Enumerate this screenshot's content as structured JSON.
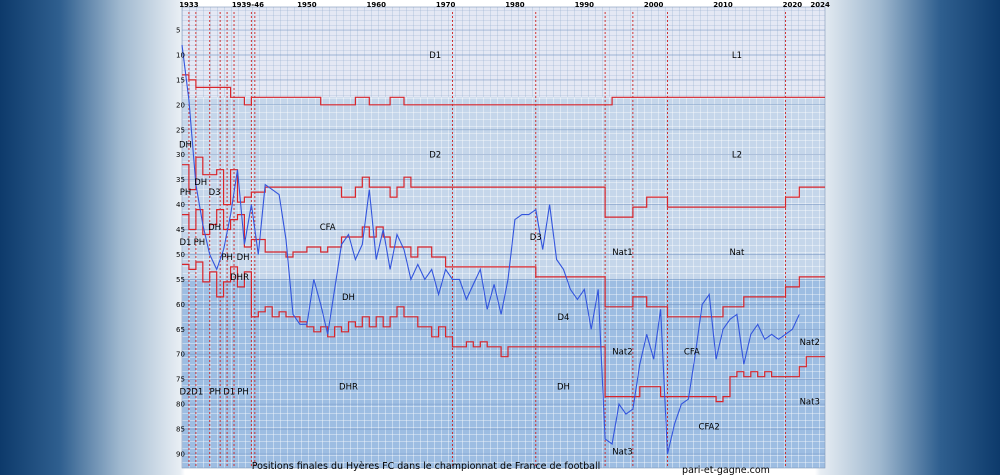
{
  "chart_data": {
    "type": "line",
    "title": "Positions finales du Hyères FC dans le championnat de France de football",
    "source": "pari-et-gagne.com",
    "year_ticks": [
      "1933",
      "1939-46",
      "1950",
      "1960",
      "1970",
      "1980",
      "1990",
      "2000",
      "2010",
      "2020",
      "2024"
    ],
    "position_ticks": [
      5,
      10,
      15,
      20,
      25,
      30,
      35,
      40,
      45,
      50,
      55,
      60,
      65,
      70,
      75,
      80,
      85,
      90
    ],
    "xlim": [
      1932,
      2024.7
    ],
    "ylim": [
      0,
      94
    ],
    "division_labels": [
      {
        "text": "D1",
        "x": 1968.5,
        "y": 10
      },
      {
        "text": "L1",
        "x": 2012,
        "y": 10
      },
      {
        "text": "D2",
        "x": 1968.5,
        "y": 30
      },
      {
        "text": "L2",
        "x": 2012,
        "y": 30
      },
      {
        "text": "DH",
        "x": 1932.5,
        "y": 28
      },
      {
        "text": "PH",
        "x": 1932.5,
        "y": 37.5
      },
      {
        "text": "DH",
        "x": 1934.7,
        "y": 35.5
      },
      {
        "text": "D3",
        "x": 1936.7,
        "y": 37.5
      },
      {
        "text": "D1",
        "x": 1932.5,
        "y": 47.5
      },
      {
        "text": "PH",
        "x": 1934.5,
        "y": 47.5
      },
      {
        "text": "DH",
        "x": 1936.7,
        "y": 44.5
      },
      {
        "text": "PH",
        "x": 1938.5,
        "y": 50.5
      },
      {
        "text": "DH",
        "x": 1940.8,
        "y": 50.5
      },
      {
        "text": "DHR",
        "x": 1940.3,
        "y": 54.5
      },
      {
        "text": "CFA",
        "x": 1953,
        "y": 44.5
      },
      {
        "text": "D3",
        "x": 1983,
        "y": 46.5
      },
      {
        "text": "Nat1",
        "x": 1995.5,
        "y": 49.5
      },
      {
        "text": "Nat",
        "x": 2012,
        "y": 49.5
      },
      {
        "text": "DH",
        "x": 1956,
        "y": 58.5
      },
      {
        "text": "D4",
        "x": 1987,
        "y": 62.5
      },
      {
        "text": "Nat2",
        "x": 1995.5,
        "y": 69.5
      },
      {
        "text": "CFA",
        "x": 2005.5,
        "y": 69.5
      },
      {
        "text": "Nat2",
        "x": 2022.5,
        "y": 67.5
      },
      {
        "text": "D2",
        "x": 1932.5,
        "y": 77.5
      },
      {
        "text": "D1",
        "x": 1934.2,
        "y": 77.5
      },
      {
        "text": "PH",
        "x": 1936.8,
        "y": 77.5
      },
      {
        "text": "D1",
        "x": 1938.8,
        "y": 77.5
      },
      {
        "text": "PH",
        "x": 1940.8,
        "y": 77.5
      },
      {
        "text": "DHR",
        "x": 1956,
        "y": 76.5
      },
      {
        "text": "DH",
        "x": 1987,
        "y": 76.5
      },
      {
        "text": "Nat3",
        "x": 2022.5,
        "y": 79.5
      },
      {
        "text": "CFA2",
        "x": 2008,
        "y": 84.5
      },
      {
        "text": "Nat3",
        "x": 1995.5,
        "y": 89.5
      }
    ],
    "boundaries": [
      [
        [
          1932,
          14
        ],
        [
          1933,
          14
        ],
        [
          1933,
          15
        ],
        [
          1934,
          15
        ],
        [
          1934,
          16.5
        ],
        [
          1939,
          16.5
        ],
        [
          1939,
          18.5
        ],
        [
          1941,
          18.5
        ],
        [
          1941,
          20
        ],
        [
          1942,
          20
        ],
        [
          1942,
          18.5
        ],
        [
          1952,
          18.5
        ],
        [
          1952,
          20
        ],
        [
          1957,
          20
        ],
        [
          1957,
          18.5
        ],
        [
          1959,
          18.5
        ],
        [
          1959,
          20
        ],
        [
          1962,
          20
        ],
        [
          1962,
          18.5
        ],
        [
          1964,
          18.5
        ],
        [
          1964,
          20
        ],
        [
          1994,
          20
        ],
        [
          1994,
          18.5
        ],
        [
          2024.7,
          18.5
        ]
      ],
      [
        [
          1932,
          32
        ],
        [
          1933,
          32
        ],
        [
          1933,
          37
        ],
        [
          1934,
          37
        ],
        [
          1934,
          30.5
        ],
        [
          1935,
          30.5
        ],
        [
          1935,
          34
        ],
        [
          1937,
          34
        ],
        [
          1937,
          33
        ],
        [
          1938,
          33
        ],
        [
          1938,
          40
        ],
        [
          1939,
          40
        ],
        [
          1939,
          33
        ],
        [
          1940,
          33
        ],
        [
          1940,
          39.5
        ],
        [
          1941,
          39.5
        ],
        [
          1941,
          38.5
        ],
        [
          1942,
          38.5
        ],
        [
          1942,
          37.5
        ],
        [
          1944,
          37.5
        ],
        [
          1944,
          36.5
        ],
        [
          1955,
          36.5
        ],
        [
          1955,
          38.5
        ],
        [
          1957,
          38.5
        ],
        [
          1957,
          36.5
        ],
        [
          1958,
          36.5
        ],
        [
          1958,
          34.5
        ],
        [
          1959,
          34.5
        ],
        [
          1959,
          36.5
        ],
        [
          1962,
          36.5
        ],
        [
          1962,
          38.5
        ],
        [
          1963,
          38.5
        ],
        [
          1963,
          36.5
        ],
        [
          1964,
          36.5
        ],
        [
          1964,
          34.5
        ],
        [
          1965,
          34.5
        ],
        [
          1965,
          36.5
        ],
        [
          1993,
          36.5
        ],
        [
          1993,
          42.5
        ],
        [
          1997,
          42.5
        ],
        [
          1997,
          40.5
        ],
        [
          1999,
          40.5
        ],
        [
          1999,
          38.5
        ],
        [
          2002,
          38.5
        ],
        [
          2002,
          40.5
        ],
        [
          2019,
          40.5
        ],
        [
          2019,
          38.5
        ],
        [
          2021,
          38.5
        ],
        [
          2021,
          36.5
        ],
        [
          2024.7,
          36.5
        ]
      ],
      [
        [
          1932,
          42
        ],
        [
          1933,
          42
        ],
        [
          1933,
          45
        ],
        [
          1934,
          45
        ],
        [
          1934,
          41
        ],
        [
          1935,
          41
        ],
        [
          1935,
          46
        ],
        [
          1936,
          46
        ],
        [
          1936,
          44
        ],
        [
          1937,
          44
        ],
        [
          1937,
          41
        ],
        [
          1938,
          41
        ],
        [
          1938,
          45
        ],
        [
          1939,
          45
        ],
        [
          1939,
          43
        ],
        [
          1940,
          43
        ],
        [
          1940,
          42
        ],
        [
          1941,
          42
        ],
        [
          1941,
          48.5
        ],
        [
          1942,
          48.5
        ],
        [
          1942,
          47
        ],
        [
          1944,
          47
        ],
        [
          1944,
          49.5
        ],
        [
          1947,
          49.5
        ],
        [
          1947,
          50.5
        ],
        [
          1948,
          50.5
        ],
        [
          1948,
          49.5
        ],
        [
          1950,
          49.5
        ],
        [
          1950,
          48.5
        ],
        [
          1952,
          48.5
        ],
        [
          1952,
          49.5
        ],
        [
          1953,
          49.5
        ],
        [
          1953,
          48.5
        ],
        [
          1955,
          48.5
        ],
        [
          1955,
          46.5
        ],
        [
          1958,
          46.5
        ],
        [
          1958,
          44.5
        ],
        [
          1959,
          44.5
        ],
        [
          1959,
          46.5
        ],
        [
          1960,
          46.5
        ],
        [
          1960,
          44.5
        ],
        [
          1961,
          44.5
        ],
        [
          1961,
          46.5
        ],
        [
          1962,
          46.5
        ],
        [
          1962,
          48.5
        ],
        [
          1965,
          48.5
        ],
        [
          1965,
          50.5
        ],
        [
          1966,
          50.5
        ],
        [
          1966,
          48.5
        ],
        [
          1968,
          48.5
        ],
        [
          1968,
          50.5
        ],
        [
          1970,
          50.5
        ],
        [
          1970,
          52.5
        ],
        [
          1983,
          52.5
        ],
        [
          1983,
          54.5
        ],
        [
          1993,
          54.5
        ],
        [
          1993,
          60.5
        ],
        [
          1997,
          60.5
        ],
        [
          1997,
          58.5
        ],
        [
          1999,
          58.5
        ],
        [
          1999,
          60.5
        ],
        [
          2002,
          60.5
        ],
        [
          2002,
          62.5
        ],
        [
          2010,
          62.5
        ],
        [
          2010,
          60.5
        ],
        [
          2013,
          60.5
        ],
        [
          2013,
          58.5
        ],
        [
          2019,
          58.5
        ],
        [
          2019,
          56.5
        ],
        [
          2021,
          56.5
        ],
        [
          2021,
          54.5
        ],
        [
          2024.7,
          54.5
        ]
      ],
      [
        [
          1932,
          52
        ],
        [
          1933,
          52
        ],
        [
          1933,
          53
        ],
        [
          1934,
          53
        ],
        [
          1934,
          51.5
        ],
        [
          1935,
          51.5
        ],
        [
          1935,
          55.5
        ],
        [
          1936,
          55.5
        ],
        [
          1936,
          53.5
        ],
        [
          1937,
          53.5
        ],
        [
          1937,
          58.5
        ],
        [
          1938,
          58.5
        ],
        [
          1938,
          55.5
        ],
        [
          1939,
          55.5
        ],
        [
          1939,
          52.5
        ],
        [
          1940,
          52.5
        ],
        [
          1940,
          56.5
        ],
        [
          1941,
          56.5
        ],
        [
          1941,
          53.5
        ],
        [
          1942,
          53.5
        ],
        [
          1942,
          62.5
        ],
        [
          1943,
          62.5
        ],
        [
          1943,
          61.5
        ],
        [
          1944,
          61.5
        ],
        [
          1944,
          60.5
        ],
        [
          1945,
          60.5
        ],
        [
          1945,
          62.5
        ],
        [
          1946,
          62.5
        ],
        [
          1946,
          61.5
        ],
        [
          1947,
          61.5
        ],
        [
          1947,
          62.5
        ],
        [
          1949,
          62.5
        ],
        [
          1949,
          63.5
        ],
        [
          1950,
          63.5
        ],
        [
          1950,
          64.5
        ],
        [
          1951,
          64.5
        ],
        [
          1951,
          65.5
        ],
        [
          1952,
          65.5
        ],
        [
          1952,
          64.5
        ],
        [
          1953,
          64.5
        ],
        [
          1953,
          66.5
        ],
        [
          1954,
          66.5
        ],
        [
          1954,
          64.5
        ],
        [
          1955,
          64.5
        ],
        [
          1955,
          65.5
        ],
        [
          1956,
          65.5
        ],
        [
          1956,
          63.5
        ],
        [
          1957,
          63.5
        ],
        [
          1957,
          64.5
        ],
        [
          1958,
          64.5
        ],
        [
          1958,
          62.5
        ],
        [
          1959,
          62.5
        ],
        [
          1959,
          64.5
        ],
        [
          1960,
          64.5
        ],
        [
          1960,
          62.5
        ],
        [
          1961,
          62.5
        ],
        [
          1961,
          64.5
        ],
        [
          1962,
          64.5
        ],
        [
          1962,
          62.5
        ],
        [
          1963,
          62.5
        ],
        [
          1963,
          60.5
        ],
        [
          1964,
          60.5
        ],
        [
          1964,
          62.5
        ],
        [
          1966,
          62.5
        ],
        [
          1966,
          64.5
        ],
        [
          1968,
          64.5
        ],
        [
          1968,
          66.5
        ],
        [
          1969,
          66.5
        ],
        [
          1969,
          64.5
        ],
        [
          1970,
          64.5
        ],
        [
          1970,
          66.5
        ],
        [
          1971,
          66.5
        ],
        [
          1971,
          68.5
        ],
        [
          1973,
          68.5
        ],
        [
          1973,
          67.5
        ],
        [
          1974,
          67.5
        ],
        [
          1974,
          68.5
        ],
        [
          1975,
          68.5
        ],
        [
          1975,
          67.5
        ],
        [
          1976,
          67.5
        ],
        [
          1976,
          68.5
        ],
        [
          1978,
          68.5
        ],
        [
          1978,
          70.5
        ],
        [
          1979,
          70.5
        ],
        [
          1979,
          68.5
        ],
        [
          1993,
          68.5
        ],
        [
          1993,
          78.5
        ],
        [
          1998,
          78.5
        ],
        [
          1998,
          76.5
        ],
        [
          2001,
          76.5
        ],
        [
          2001,
          78.5
        ],
        [
          2009,
          78.5
        ],
        [
          2009,
          79.5
        ],
        [
          2010,
          79.5
        ],
        [
          2010,
          78.5
        ],
        [
          2011,
          78.5
        ],
        [
          2011,
          74.5
        ],
        [
          2012,
          74.5
        ],
        [
          2012,
          73.5
        ],
        [
          2013,
          73.5
        ],
        [
          2013,
          74.5
        ],
        [
          2014,
          74.5
        ],
        [
          2014,
          73.5
        ],
        [
          2015,
          73.5
        ],
        [
          2015,
          74.5
        ],
        [
          2016,
          74.5
        ],
        [
          2016,
          73.5
        ],
        [
          2017,
          73.5
        ],
        [
          2017,
          74.5
        ],
        [
          2021,
          74.5
        ],
        [
          2021,
          72.5
        ],
        [
          2022,
          72.5
        ],
        [
          2022,
          70.5
        ],
        [
          2024.7,
          70.5
        ]
      ]
    ],
    "series": [
      {
        "x": [
          1932,
          1933,
          1934,
          1935,
          1936,
          1937,
          1938,
          1939,
          1940,
          1941,
          1942,
          1943,
          1944,
          1945,
          1946,
          1947,
          1948,
          1949,
          1950,
          1951,
          1952,
          1953,
          1954,
          1955,
          1956,
          1957,
          1958,
          1959,
          1960,
          1961,
          1962,
          1963,
          1964,
          1965,
          1966,
          1967,
          1968,
          1969,
          1970,
          1971,
          1972,
          1973,
          1974,
          1975,
          1976,
          1977,
          1978,
          1979,
          1980,
          1981,
          1982,
          1983,
          1984,
          1985,
          1986,
          1987,
          1988,
          1989,
          1990,
          1991,
          1992,
          1993,
          1994,
          1995,
          1996,
          1997,
          1998,
          1999,
          2000,
          2001,
          2002,
          2003,
          2004,
          2005,
          2006,
          2007,
          2008,
          2009,
          2010,
          2011,
          2012,
          2013,
          2014,
          2015,
          2016,
          2017,
          2018,
          2019,
          2020,
          2021
        ],
        "y": [
          8,
          19,
          36,
          44,
          50,
          53,
          49,
          42,
          33,
          48,
          40,
          50,
          36,
          37,
          38,
          47,
          62,
          64,
          64,
          55,
          60,
          66,
          57,
          48,
          46,
          51,
          48,
          37,
          51,
          45,
          53,
          46,
          49,
          55,
          52,
          55,
          53,
          58,
          53,
          55,
          55,
          59,
          56,
          53,
          61,
          56,
          62,
          55,
          43,
          42,
          42,
          41,
          49,
          40,
          51,
          53,
          57,
          59,
          57,
          65,
          57,
          87,
          88,
          80,
          82,
          81,
          72,
          66,
          71,
          61,
          90,
          84,
          80,
          79,
          70,
          60,
          58,
          71,
          65,
          63,
          62,
          72,
          66,
          64,
          67,
          66,
          67,
          66,
          65,
          62
        ]
      }
    ]
  }
}
